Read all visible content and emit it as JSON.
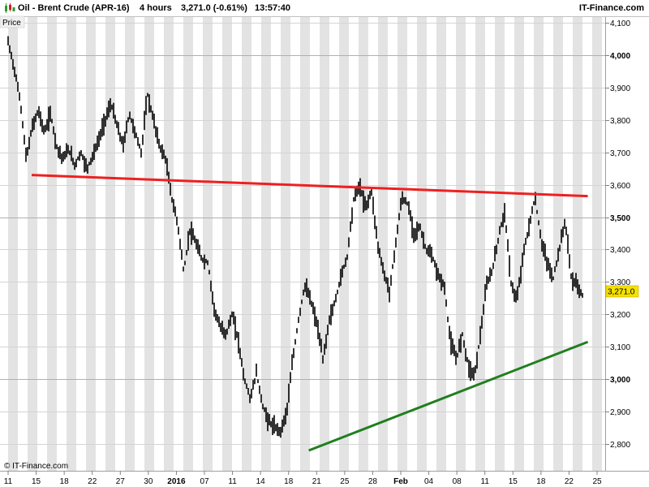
{
  "header": {
    "logo_icon": "candlestick-chart-icon",
    "instrument": "Oil - Brent Crude (APR-16)",
    "interval": "4 hours",
    "last_change": "3,271.0 (-0.61%)",
    "time": "13:57:40",
    "brand": "IT-Finance.com"
  },
  "panel_label": "Price",
  "footer_credit": "© IT-Finance.com",
  "current_price_label": "3,271.0",
  "chart_data": {
    "type": "line",
    "ylim": [
      2750,
      4110
    ],
    "y_ticks": [
      {
        "value": 4100,
        "label": "4,100",
        "bold": false
      },
      {
        "value": 4000,
        "label": "4,000",
        "bold": true
      },
      {
        "value": 3900,
        "label": "3,900",
        "bold": false
      },
      {
        "value": 3800,
        "label": "3,800",
        "bold": false
      },
      {
        "value": 3700,
        "label": "3,700",
        "bold": false
      },
      {
        "value": 3600,
        "label": "3,600",
        "bold": false
      },
      {
        "value": 3500,
        "label": "3,500",
        "bold": true
      },
      {
        "value": 3400,
        "label": "3,400",
        "bold": false
      },
      {
        "value": 3300,
        "label": "3,300",
        "bold": false
      },
      {
        "value": 3200,
        "label": "3,200",
        "bold": false
      },
      {
        "value": 3100,
        "label": "3,100",
        "bold": false
      },
      {
        "value": 3000,
        "label": "3,000",
        "bold": true
      },
      {
        "value": 2900,
        "label": "2,900",
        "bold": false
      },
      {
        "value": 2800,
        "label": "2,800",
        "bold": false
      }
    ],
    "x_ticks": [
      {
        "label": "11",
        "bold": false
      },
      {
        "label": "15",
        "bold": false
      },
      {
        "label": "18",
        "bold": false
      },
      {
        "label": "22",
        "bold": false
      },
      {
        "label": "27",
        "bold": false
      },
      {
        "label": "30",
        "bold": false
      },
      {
        "label": "2016",
        "bold": true
      },
      {
        "label": "07",
        "bold": false
      },
      {
        "label": "11",
        "bold": false
      },
      {
        "label": "14",
        "bold": false
      },
      {
        "label": "18",
        "bold": false
      },
      {
        "label": "21",
        "bold": false
      },
      {
        "label": "25",
        "bold": false
      },
      {
        "label": "28",
        "bold": false
      },
      {
        "label": "Feb",
        "bold": true
      },
      {
        "label": "04",
        "bold": false
      },
      {
        "label": "08",
        "bold": false
      },
      {
        "label": "11",
        "bold": false
      },
      {
        "label": "15",
        "bold": false
      },
      {
        "label": "18",
        "bold": false
      },
      {
        "label": "22",
        "bold": false
      },
      {
        "label": "25",
        "bold": false
      }
    ],
    "price_path": [
      [
        0,
        4040
      ],
      [
        1,
        3960
      ],
      [
        2,
        3860
      ],
      [
        3,
        3680
      ],
      [
        4,
        3780
      ],
      [
        5,
        3830
      ],
      [
        6,
        3760
      ],
      [
        7,
        3820
      ],
      [
        8,
        3720
      ],
      [
        9,
        3680
      ],
      [
        10,
        3710
      ],
      [
        11,
        3660
      ],
      [
        12,
        3700
      ],
      [
        13,
        3650
      ],
      [
        14,
        3690
      ],
      [
        15,
        3740
      ],
      [
        16,
        3800
      ],
      [
        17,
        3850
      ],
      [
        18,
        3780
      ],
      [
        19,
        3720
      ],
      [
        20,
        3820
      ],
      [
        21,
        3760
      ],
      [
        22,
        3700
      ],
      [
        23,
        3880
      ],
      [
        24,
        3800
      ],
      [
        25,
        3720
      ],
      [
        26,
        3680
      ],
      [
        27,
        3560
      ],
      [
        28,
        3480
      ],
      [
        29,
        3330
      ],
      [
        30,
        3460
      ],
      [
        31,
        3420
      ],
      [
        32,
        3370
      ],
      [
        33,
        3360
      ],
      [
        34,
        3220
      ],
      [
        35,
        3160
      ],
      [
        36,
        3140
      ],
      [
        37,
        3200
      ],
      [
        38,
        3120
      ],
      [
        39,
        3000
      ],
      [
        40,
        2940
      ],
      [
        41,
        3020
      ],
      [
        42,
        2920
      ],
      [
        43,
        2870
      ],
      [
        44,
        2850
      ],
      [
        45,
        2840
      ],
      [
        46,
        2900
      ],
      [
        47,
        3060
      ],
      [
        48,
        3190
      ],
      [
        49,
        3290
      ],
      [
        50,
        3240
      ],
      [
        51,
        3170
      ],
      [
        52,
        3060
      ],
      [
        53,
        3180
      ],
      [
        54,
        3240
      ],
      [
        55,
        3320
      ],
      [
        56,
        3380
      ],
      [
        57,
        3550
      ],
      [
        58,
        3600
      ],
      [
        59,
        3530
      ],
      [
        60,
        3580
      ],
      [
        61,
        3420
      ],
      [
        62,
        3330
      ],
      [
        63,
        3270
      ],
      [
        64,
        3420
      ],
      [
        65,
        3560
      ],
      [
        66,
        3540
      ],
      [
        67,
        3450
      ],
      [
        68,
        3470
      ],
      [
        69,
        3400
      ],
      [
        70,
        3380
      ],
      [
        71,
        3320
      ],
      [
        72,
        3290
      ],
      [
        73,
        3120
      ],
      [
        74,
        3060
      ],
      [
        75,
        3140
      ],
      [
        76,
        3040
      ],
      [
        77,
        3010
      ],
      [
        78,
        3140
      ],
      [
        79,
        3290
      ],
      [
        80,
        3340
      ],
      [
        81,
        3440
      ],
      [
        82,
        3520
      ],
      [
        83,
        3300
      ],
      [
        84,
        3240
      ],
      [
        85,
        3380
      ],
      [
        86,
        3470
      ],
      [
        87,
        3560
      ],
      [
        88,
        3430
      ],
      [
        89,
        3360
      ],
      [
        90,
        3310
      ],
      [
        91,
        3400
      ],
      [
        92,
        3490
      ],
      [
        93,
        3310
      ],
      [
        94,
        3290
      ],
      [
        95,
        3250
      ]
    ],
    "price_range_max": 95,
    "price_x_start": 0,
    "price_x_end": 92.8,
    "resistance_line": {
      "start": [
        3.8,
        3630
      ],
      "end": [
        93.5,
        3565
      ],
      "color": "#ee2020"
    },
    "support_line": {
      "start": [
        48.5,
        2780
      ],
      "end": [
        93.5,
        3115
      ],
      "color": "#1f7f1f"
    },
    "current_price": 3271
  }
}
